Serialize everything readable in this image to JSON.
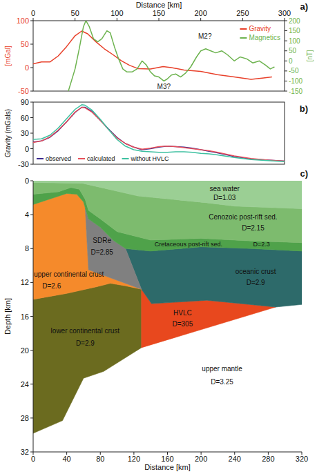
{
  "chart_data": [
    {
      "type": "line",
      "label": "a)",
      "x_label": "Distance [km]",
      "y_label": "[mGal]",
      "y2_label": "[nT]",
      "xlim": [
        0,
        300
      ],
      "xticks": [
        0,
        50,
        100,
        150,
        200,
        250,
        300
      ],
      "ylim": [
        -50,
        100
      ],
      "yticks": [
        -50,
        0,
        50,
        100
      ],
      "y2lim": [
        -150,
        200
      ],
      "y2ticks": [
        -150,
        -100,
        -50,
        0,
        50,
        100,
        150,
        200
      ],
      "legend": "upper right",
      "series": [
        {
          "name": "Gravity",
          "color": "#e8402a",
          "x": [
            0,
            10,
            20,
            30,
            40,
            50,
            58,
            65,
            75,
            85,
            95,
            105,
            115,
            125,
            140,
            155,
            165,
            180,
            200,
            220,
            240,
            260,
            275,
            285
          ],
          "values": [
            8,
            12,
            12,
            25,
            45,
            68,
            78,
            72,
            55,
            40,
            28,
            15,
            5,
            -2,
            -3,
            2,
            0,
            -5,
            -8,
            -15,
            -20,
            -25,
            -22,
            -20
          ]
        },
        {
          "name": "Magnetics",
          "color": "#6db34f",
          "axis": "y2",
          "x": [
            42,
            50,
            55,
            60,
            63,
            67,
            72,
            77,
            82,
            88,
            92,
            97,
            102,
            107,
            112,
            118,
            124,
            130,
            135,
            140,
            145,
            150,
            156,
            160,
            165,
            170,
            176,
            182,
            188,
            195,
            200,
            206,
            212,
            218,
            225,
            232,
            240,
            247,
            255,
            262,
            270,
            277,
            283,
            288
          ],
          "values": [
            -150,
            -40,
            60,
            170,
            200,
            170,
            110,
            95,
            110,
            150,
            140,
            70,
            10,
            -40,
            -55,
            -55,
            -40,
            0,
            -20,
            -55,
            -75,
            -80,
            -100,
            -90,
            -70,
            -65,
            -80,
            -60,
            -30,
            20,
            50,
            60,
            50,
            40,
            50,
            30,
            0,
            20,
            10,
            -10,
            0,
            -20,
            -40,
            -30
          ]
        }
      ],
      "annotations": [
        {
          "text": "M2?",
          "x": 205,
          "y": 110,
          "axis": "y2"
        },
        {
          "text": "M3?",
          "x": 156,
          "y": -140,
          "axis": "y2"
        }
      ]
    },
    {
      "type": "line",
      "label": "b)",
      "y_label": "Gravity (mGals)",
      "xlim": [
        0,
        300
      ],
      "ylim": [
        -30,
        90
      ],
      "yticks": [
        -30,
        0,
        30,
        60,
        90
      ],
      "tick_labels": "y",
      "legend": "lower left",
      "series": [
        {
          "name": "observed",
          "color": "#3b2a8f",
          "x": [
            0,
            10,
            20,
            30,
            40,
            50,
            58,
            62,
            70,
            80,
            90,
            100,
            110,
            120,
            130,
            140,
            150,
            160,
            170,
            180,
            190,
            200,
            210,
            220,
            240,
            260,
            280,
            300
          ],
          "values": [
            13,
            15,
            22,
            35,
            52,
            70,
            80,
            80,
            72,
            55,
            38,
            22,
            10,
            3,
            -2,
            0,
            3,
            5,
            4,
            3,
            1,
            -2,
            -5,
            -8,
            -15,
            -20,
            -22,
            -24
          ]
        },
        {
          "name": "calculated",
          "color": "#e8505a",
          "x": [
            0,
            10,
            20,
            30,
            40,
            50,
            58,
            62,
            70,
            80,
            90,
            100,
            110,
            120,
            130,
            140,
            150,
            160,
            170,
            180,
            190,
            200,
            210,
            220,
            240,
            260,
            280,
            300
          ],
          "values": [
            12,
            15,
            23,
            36,
            52,
            71,
            80,
            79,
            71,
            55,
            37,
            21,
            10,
            3,
            -1,
            1,
            4,
            5,
            4,
            2,
            0,
            -2,
            -4,
            -7,
            -14,
            -19,
            -22,
            -24
          ]
        },
        {
          "name": "without HVLC",
          "color": "#3cc0a0",
          "x": [
            0,
            10,
            20,
            30,
            40,
            50,
            58,
            62,
            70,
            80,
            90,
            100,
            110,
            120,
            130,
            140,
            150,
            160,
            170,
            180,
            190,
            200,
            210,
            220,
            240,
            260,
            280,
            300
          ],
          "values": [
            18,
            19,
            26,
            40,
            58,
            76,
            85,
            84,
            75,
            57,
            37,
            18,
            5,
            -2,
            -5,
            -6,
            -7,
            -7,
            -6,
            -6,
            -7,
            -9,
            -10,
            -12,
            -17,
            -21,
            -23,
            -25
          ]
        }
      ]
    },
    {
      "type": "section",
      "label": "c)",
      "x_label": "Distance [km]",
      "y_label": "Depth [km]",
      "xlim": [
        0,
        320
      ],
      "xticks": [
        0,
        40,
        80,
        120,
        160,
        200,
        240,
        280,
        320
      ],
      "ylim": [
        0,
        32
      ],
      "yticks": [
        0,
        4,
        8,
        12,
        16,
        20,
        24,
        28,
        32
      ],
      "bodies": [
        {
          "name": "upper mantle",
          "density": "D=3.25",
          "color": "#ffffff",
          "x": [
            0,
            35,
            60,
            84,
            129,
            289,
            320,
            320,
            0
          ],
          "depth": [
            29.8,
            28.3,
            23.3,
            22.5,
            19.7,
            14.9,
            14.6,
            32,
            32
          ]
        },
        {
          "name": "lower continental crust",
          "density": "D=2.9",
          "color": "#6b6b1f",
          "x": [
            0,
            40,
            76,
            92,
            110,
            129,
            129,
            84,
            60,
            35,
            0
          ],
          "depth": [
            14,
            13.3,
            12.5,
            12.1,
            12.4,
            12.8,
            19.7,
            22.5,
            23.3,
            28.3,
            29.8
          ]
        },
        {
          "name": "HVLC",
          "density": "D=305",
          "color": "#e8481e",
          "x": [
            129,
            141,
            207,
            289,
            129
          ],
          "depth": [
            12.8,
            14.5,
            14.1,
            14.9,
            19.7
          ]
        },
        {
          "name": "oceanic crust",
          "density": "D=2.9",
          "color": "#2d6a6a",
          "x": [
            110,
            140,
            200,
            260,
            320,
            320,
            289,
            207,
            141,
            129
          ],
          "depth": [
            8,
            8.3,
            7.8,
            8,
            8.3,
            14.6,
            14.9,
            14.1,
            14.5,
            12.8
          ]
        },
        {
          "name": "upper continental crust",
          "density": "D=2.6",
          "color": "#f58a2b",
          "x": [
            0,
            40,
            52,
            60,
            62,
            66,
            129,
            110,
            92,
            76,
            40,
            0
          ],
          "depth": [
            2.8,
            1.5,
            1.6,
            2.5,
            3.2,
            10.5,
            12.8,
            12.4,
            12.1,
            12.5,
            13.3,
            14
          ]
        },
        {
          "name": "SDRe",
          "density": "D=2.85",
          "color": "#808080",
          "x": [
            62,
            66,
            80,
            95,
            110,
            129,
            66
          ],
          "depth": [
            3.2,
            4.5,
            5.5,
            7,
            8,
            12.8,
            10.5
          ]
        },
        {
          "name": "Cretaceous post-rift sed.",
          "density": "D=2.3",
          "color": "#4fa24a",
          "x": [
            0,
            30,
            45,
            55,
            62,
            66,
            80,
            100,
            140,
            200,
            260,
            320,
            320,
            260,
            200,
            140,
            110,
            95,
            80,
            66,
            62,
            60,
            52,
            40,
            0
          ],
          "depth": [
            1.6,
            1.3,
            0.8,
            1,
            2.2,
            3.5,
            4.5,
            6,
            7,
            6.8,
            7.1,
            7.3,
            8.3,
            8,
            7.8,
            8.3,
            8,
            7,
            5.5,
            4.5,
            3.2,
            2.5,
            1.6,
            1.5,
            2.8
          ]
        },
        {
          "name": "Cenozoic post-rift sed.",
          "density": "D=2.15",
          "color": "#7dbb6e",
          "x": [
            0,
            59,
            125,
            207,
            240,
            320,
            320,
            260,
            200,
            140,
            100,
            80,
            66,
            62,
            55,
            45,
            30,
            0
          ],
          "depth": [
            0.2,
            0.3,
            1.8,
            2.6,
            3,
            3.3,
            7.3,
            7.1,
            6.8,
            7,
            6,
            4.5,
            3.5,
            2.2,
            1,
            0.8,
            1.3,
            1.6
          ]
        },
        {
          "name": "sea water",
          "density": "D=1.03",
          "color": "#9bcf94",
          "x": [
            0,
            320,
            320,
            240,
            207,
            125,
            59,
            0
          ],
          "depth": [
            0,
            0,
            3.3,
            3,
            2.6,
            1.8,
            0.3,
            0.2
          ]
        }
      ]
    }
  ]
}
